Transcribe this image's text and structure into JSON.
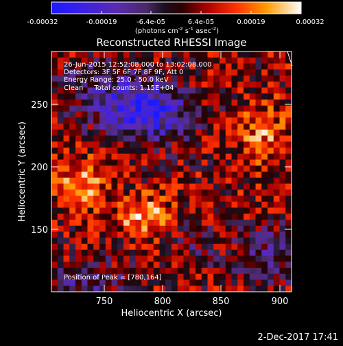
{
  "colorbar": {
    "ticks": [
      "-0.00032",
      "-0.00019",
      "-6.4e-05",
      "6.4e-05",
      "0.00019",
      "0.00032"
    ],
    "units_main": "(photons cm",
    "units_exp1": "-2",
    "units_mid": " s",
    "units_exp2": "-1",
    "units_end": " asec",
    "units_exp3": "-2",
    "units_close": ")"
  },
  "image": {
    "title": "Reconstructed RHESSI Image",
    "info_lines": [
      "26-Jun-2015 12:52:08.000 to 13:02:08.000",
      "Detectors: 3F 5F 6F 7F 8F 9F, Att 0",
      "Energy Range: 25.0 - 50.0 keV",
      "Clean     Total counts: 1.15E+04"
    ],
    "peak_label": "Position of Peak = [780,164]"
  },
  "axes": {
    "xlabel": "Heliocentric X (arcsec)",
    "ylabel": "Heliocentric Y (arcsec)",
    "xticks": [
      "750",
      "800",
      "850",
      "900"
    ],
    "yticks": [
      "150",
      "200",
      "250"
    ]
  },
  "footer": {
    "timestamp": "2-Dec-2017 17:41"
  },
  "colors": {
    "background": "#000000",
    "axis": "#ffffff"
  }
}
